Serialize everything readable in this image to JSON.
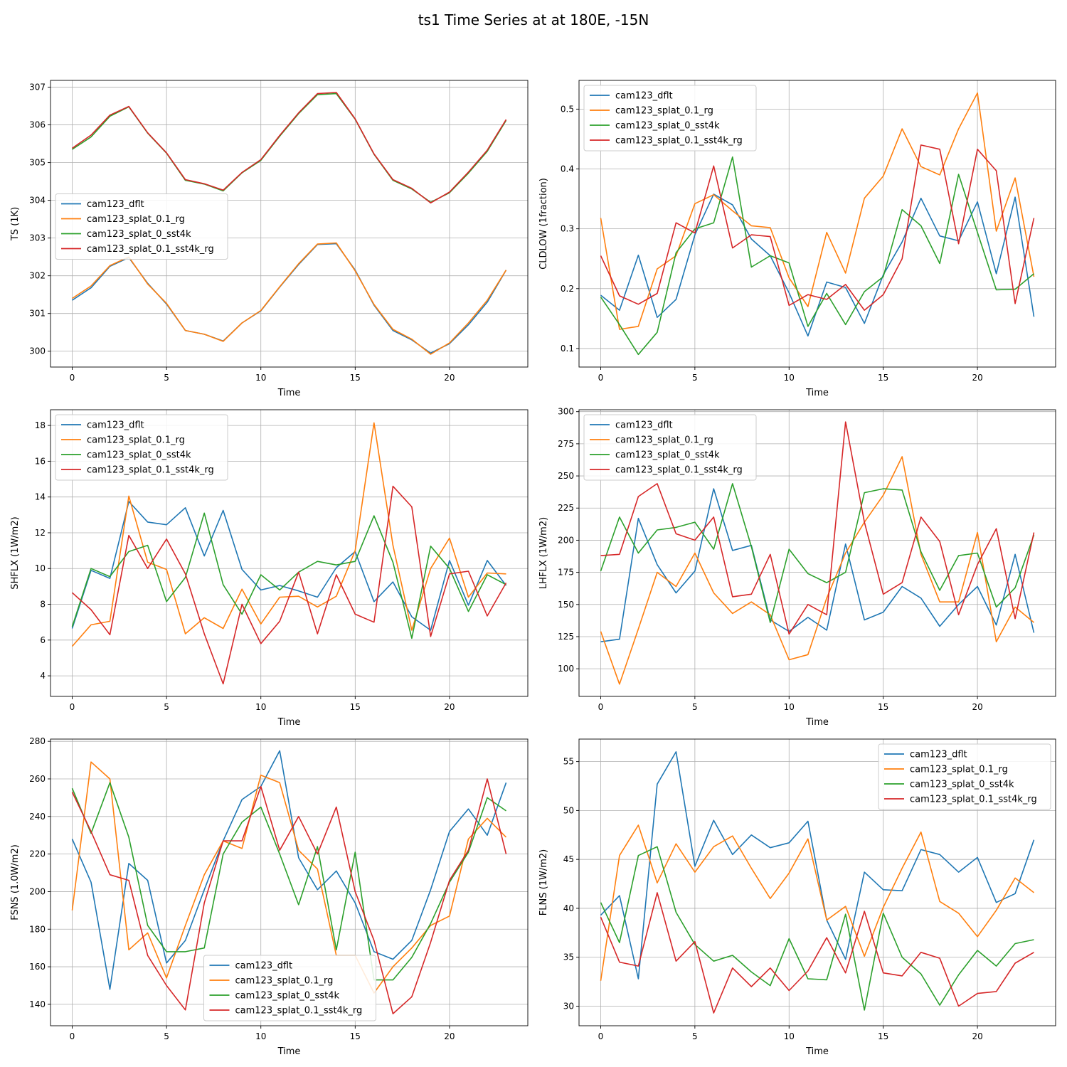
{
  "figure": {
    "title": "ts1 Time Series at at 180E, -15N",
    "series_names": [
      "cam123_dflt",
      "cam123_splat_0.1_rg",
      "cam123_splat_0_sst4k",
      "cam123_splat_0.1_sst4k_rg"
    ],
    "series_colors": [
      "#1f77b4",
      "#ff7f0e",
      "#2ca02c",
      "#d62728"
    ]
  },
  "chart_data": [
    {
      "type": "line",
      "id": "ts",
      "xlabel": "Time",
      "ylabel": "TS (1K)",
      "xlim": [
        -1.15,
        24.15
      ],
      "ylim": [
        299.58,
        307.18
      ],
      "xticks": [
        0,
        5,
        10,
        15,
        20
      ],
      "yticks": [
        300,
        301,
        302,
        303,
        304,
        305,
        306,
        307
      ],
      "legend": "center-left",
      "grid": true,
      "x": [
        0,
        1,
        2,
        3,
        4,
        5,
        6,
        7,
        8,
        9,
        10,
        11,
        12,
        13,
        14,
        15,
        16,
        17,
        18,
        19,
        20,
        21,
        22,
        23
      ],
      "series": [
        {
          "name": "cam123_dflt",
          "values": [
            301.35,
            301.68,
            302.25,
            302.48,
            301.8,
            301.25,
            300.55,
            300.45,
            300.27,
            300.75,
            301.07,
            301.7,
            302.3,
            302.83,
            302.85,
            302.15,
            301.22,
            300.55,
            300.3,
            299.95,
            300.2,
            300.7,
            301.3,
            302.15
          ]
        },
        {
          "name": "cam123_splat_0.1_rg",
          "values": [
            301.4,
            301.73,
            302.27,
            302.5,
            301.78,
            301.27,
            300.55,
            300.45,
            300.26,
            300.75,
            301.08,
            301.71,
            302.32,
            302.84,
            302.87,
            302.13,
            301.24,
            300.58,
            300.32,
            299.92,
            300.22,
            300.75,
            301.35,
            302.15
          ]
        },
        {
          "name": "cam123_splat_0_sst4k",
          "values": [
            305.35,
            305.68,
            306.23,
            306.48,
            305.78,
            305.25,
            304.53,
            304.43,
            304.25,
            304.73,
            305.06,
            305.7,
            306.3,
            306.8,
            306.83,
            306.15,
            305.22,
            304.53,
            304.3,
            303.95,
            304.2,
            304.72,
            305.3,
            306.12
          ]
        },
        {
          "name": "cam123_splat_0.1_sst4k_rg",
          "values": [
            305.38,
            305.73,
            306.26,
            306.49,
            305.79,
            305.26,
            304.55,
            304.44,
            304.27,
            304.74,
            305.08,
            305.72,
            306.32,
            306.83,
            306.86,
            306.16,
            305.23,
            304.55,
            304.32,
            303.93,
            304.22,
            304.75,
            305.33,
            306.14
          ]
        }
      ]
    },
    {
      "type": "line",
      "id": "cldlow",
      "xlabel": "Time",
      "ylabel": "CLDLOW (1fraction)",
      "xlim": [
        -1.15,
        24.15
      ],
      "ylim": [
        0.069,
        0.548
      ],
      "xticks": [
        0,
        5,
        10,
        15,
        20
      ],
      "yticks": [
        0.1,
        0.2,
        0.3,
        0.4,
        0.5
      ],
      "legend": "upper-left",
      "grid": true,
      "x": [
        0,
        1,
        2,
        3,
        4,
        5,
        6,
        7,
        8,
        9,
        10,
        11,
        12,
        13,
        14,
        15,
        16,
        17,
        18,
        19,
        20,
        21,
        22,
        23
      ],
      "series": [
        {
          "name": "cam123_dflt",
          "values": [
            0.189,
            0.164,
            0.256,
            0.152,
            0.182,
            0.29,
            0.358,
            0.34,
            0.283,
            0.255,
            0.193,
            0.121,
            0.211,
            0.202,
            0.142,
            0.223,
            0.278,
            0.351,
            0.288,
            0.28,
            0.345,
            0.225,
            0.353,
            0.153
          ]
        },
        {
          "name": "cam123_splat_0.1_rg",
          "values": [
            0.318,
            0.132,
            0.137,
            0.233,
            0.255,
            0.342,
            0.357,
            0.33,
            0.305,
            0.302,
            0.218,
            0.17,
            0.294,
            0.226,
            0.351,
            0.388,
            0.467,
            0.404,
            0.39,
            0.467,
            0.527,
            0.296,
            0.385,
            0.22
          ]
        },
        {
          "name": "cam123_splat_0_sst4k",
          "values": [
            0.186,
            0.14,
            0.09,
            0.127,
            0.26,
            0.3,
            0.31,
            0.42,
            0.236,
            0.255,
            0.243,
            0.137,
            0.192,
            0.14,
            0.195,
            0.22,
            0.332,
            0.305,
            0.242,
            0.391,
            0.294,
            0.198,
            0.199,
            0.225
          ]
        },
        {
          "name": "cam123_splat_0.1_sst4k_rg",
          "values": [
            0.255,
            0.188,
            0.174,
            0.192,
            0.31,
            0.293,
            0.405,
            0.268,
            0.29,
            0.287,
            0.172,
            0.19,
            0.182,
            0.207,
            0.164,
            0.19,
            0.25,
            0.44,
            0.433,
            0.275,
            0.433,
            0.397,
            0.175,
            0.318
          ]
        }
      ]
    },
    {
      "type": "line",
      "id": "shflx",
      "xlabel": "Time",
      "ylabel": "SHFLX (1W/m2)",
      "xlim": [
        -1.15,
        24.15
      ],
      "ylim": [
        2.85,
        18.88
      ],
      "xticks": [
        0,
        5,
        10,
        15,
        20
      ],
      "yticks": [
        4,
        6,
        8,
        10,
        12,
        14,
        16,
        18
      ],
      "legend": "upper-left",
      "grid": true,
      "x": [
        0,
        1,
        2,
        3,
        4,
        5,
        6,
        7,
        8,
        9,
        10,
        11,
        12,
        13,
        14,
        15,
        16,
        17,
        18,
        19,
        20,
        21,
        22,
        23
      ],
      "series": [
        {
          "name": "cam123_dflt",
          "values": [
            6.65,
            9.9,
            9.45,
            13.75,
            12.6,
            12.45,
            13.4,
            10.7,
            13.25,
            9.95,
            8.8,
            9.05,
            8.75,
            8.4,
            10.05,
            10.95,
            8.15,
            9.25,
            7.3,
            6.55,
            10.45,
            7.95,
            10.45,
            9.05
          ]
        },
        {
          "name": "cam123_splat_0.1_rg",
          "values": [
            5.65,
            6.85,
            7.05,
            14.05,
            10.35,
            9.95,
            6.35,
            7.25,
            6.65,
            8.85,
            6.9,
            8.4,
            8.45,
            7.85,
            8.45,
            11.0,
            18.15,
            11.3,
            6.55,
            10.0,
            11.7,
            8.4,
            9.75,
            9.7
          ]
        },
        {
          "name": "cam123_splat_0_sst4k",
          "values": [
            6.75,
            10.0,
            9.55,
            10.95,
            11.3,
            8.15,
            9.5,
            13.1,
            9.1,
            7.45,
            9.65,
            8.8,
            9.8,
            10.4,
            10.2,
            10.4,
            12.95,
            10.35,
            6.1,
            11.25,
            10.0,
            7.6,
            9.65,
            9.1
          ]
        },
        {
          "name": "cam123_splat_0.1_sst4k_rg",
          "values": [
            8.65,
            7.7,
            6.3,
            11.85,
            10.0,
            11.65,
            9.7,
            6.35,
            3.55,
            8.0,
            5.8,
            7.05,
            9.8,
            6.35,
            9.65,
            7.45,
            7.0,
            14.6,
            13.45,
            6.2,
            9.7,
            9.85,
            7.35,
            9.2
          ]
        }
      ]
    },
    {
      "type": "line",
      "id": "lhflx",
      "xlabel": "Time",
      "ylabel": "LHFLX (1W/m2)",
      "xlim": [
        -1.15,
        24.15
      ],
      "ylim": [
        78.5,
        301.5
      ],
      "xticks": [
        0,
        5,
        10,
        15,
        20
      ],
      "yticks": [
        100,
        125,
        150,
        175,
        200,
        225,
        250,
        275,
        300
      ],
      "legend": "upper-left",
      "grid": true,
      "x": [
        0,
        1,
        2,
        3,
        4,
        5,
        6,
        7,
        8,
        9,
        10,
        11,
        12,
        13,
        14,
        15,
        16,
        17,
        18,
        19,
        20,
        21,
        22,
        23
      ],
      "series": [
        {
          "name": "cam123_dflt",
          "values": [
            121,
            123,
            217,
            181,
            159,
            176,
            240,
            192,
            196,
            138,
            129,
            140,
            130,
            197,
            138,
            144,
            164,
            155,
            133,
            150,
            164,
            134,
            189,
            128
          ]
        },
        {
          "name": "cam123_splat_0.1_rg",
          "values": [
            129,
            88,
            131,
            175,
            164,
            190,
            159,
            143,
            152,
            142,
            107,
            111,
            155,
            190,
            214,
            235,
            265,
            189,
            152,
            152,
            206,
            121,
            148,
            136
          ]
        },
        {
          "name": "cam123_splat_0_sst4k",
          "values": [
            176,
            218,
            190,
            208,
            210,
            214,
            193,
            244,
            195,
            136,
            193,
            174,
            167,
            175,
            237,
            240,
            239,
            191,
            161,
            188,
            190,
            148,
            163,
            204
          ]
        },
        {
          "name": "cam123_splat_0.1_sst4k_rg",
          "values": [
            188,
            189,
            234,
            244,
            205,
            200,
            218,
            156,
            158,
            189,
            127,
            150,
            142,
            292,
            214,
            158,
            167,
            218,
            199,
            142,
            181,
            209,
            139,
            206
          ]
        }
      ]
    },
    {
      "type": "line",
      "id": "fsns",
      "xlabel": "Time",
      "ylabel": "FSNS (1.0W/m2)",
      "xlim": [
        -1.15,
        24.15
      ],
      "ylim": [
        128.6,
        281.2
      ],
      "xticks": [
        0,
        5,
        10,
        15,
        20
      ],
      "yticks": [
        140,
        160,
        180,
        200,
        220,
        240,
        260,
        280
      ],
      "legend": "lower-center",
      "grid": true,
      "x": [
        0,
        1,
        2,
        3,
        4,
        5,
        6,
        7,
        8,
        9,
        10,
        11,
        12,
        13,
        14,
        15,
        16,
        17,
        18,
        19,
        20,
        21,
        22,
        23
      ],
      "series": [
        {
          "name": "cam123_dflt",
          "values": [
            228,
            205,
            148,
            215,
            206,
            162,
            174,
            201,
            227,
            249,
            256,
            275,
            218,
            201,
            211,
            194,
            168,
            164,
            174,
            201,
            232,
            244,
            230,
            258
          ]
        },
        {
          "name": "cam123_splat_0.1_rg",
          "values": [
            190,
            269,
            260,
            169,
            178,
            154,
            182,
            209,
            227,
            223,
            262,
            258,
            222,
            212,
            166,
            166,
            146,
            160,
            170,
            182,
            187,
            228,
            239,
            229
          ]
        },
        {
          "name": "cam123_splat_0_sst4k",
          "values": [
            255,
            231,
            258,
            229,
            182,
            168,
            168,
            170,
            220,
            237,
            245,
            220,
            193,
            224,
            169,
            221,
            153,
            153,
            165,
            183,
            205,
            221,
            250,
            243
          ]
        },
        {
          "name": "cam123_splat_0.1_sst4k_rg",
          "values": [
            253,
            232,
            209,
            206,
            166,
            150,
            137,
            194,
            227,
            227,
            256,
            222,
            240,
            220,
            245,
            200,
            174,
            135,
            144,
            173,
            206,
            222,
            260,
            220
          ]
        }
      ]
    },
    {
      "type": "line",
      "id": "flns",
      "xlabel": "Time",
      "ylabel": "FLNS (1W/m2)",
      "xlim": [
        -1.15,
        24.15
      ],
      "ylim": [
        28.0,
        57.3
      ],
      "xticks": [
        0,
        5,
        10,
        15,
        20
      ],
      "yticks": [
        30,
        35,
        40,
        45,
        50,
        55
      ],
      "legend": "upper-right",
      "grid": true,
      "x": [
        0,
        1,
        2,
        3,
        4,
        5,
        6,
        7,
        8,
        9,
        10,
        11,
        12,
        13,
        14,
        15,
        16,
        17,
        18,
        19,
        20,
        21,
        22,
        23
      ],
      "series": [
        {
          "name": "cam123_dflt",
          "values": [
            39.3,
            41.3,
            32.8,
            52.7,
            56.0,
            44.3,
            49.0,
            45.5,
            47.5,
            46.2,
            46.7,
            48.9,
            38.8,
            34.8,
            43.7,
            41.9,
            41.8,
            46.0,
            45.5,
            43.7,
            45.2,
            40.6,
            41.5,
            47.0
          ]
        },
        {
          "name": "cam123_splat_0.1_rg",
          "values": [
            32.6,
            45.4,
            48.5,
            42.6,
            46.6,
            43.7,
            46.3,
            47.4,
            44.1,
            41.0,
            43.6,
            47.1,
            38.8,
            40.2,
            35.1,
            40.1,
            44.1,
            47.8,
            40.7,
            39.5,
            37.1,
            39.8,
            43.1,
            41.6
          ]
        },
        {
          "name": "cam123_splat_0_sst4k",
          "values": [
            40.6,
            36.5,
            45.4,
            46.3,
            39.6,
            36.3,
            34.6,
            35.2,
            33.5,
            32.1,
            36.9,
            32.8,
            32.7,
            39.4,
            29.6,
            39.5,
            35.0,
            33.3,
            30.1,
            33.2,
            35.7,
            34.1,
            36.4,
            36.8
          ]
        },
        {
          "name": "cam123_splat_0.1_sst4k_rg",
          "values": [
            39.1,
            34.5,
            34.1,
            41.6,
            34.6,
            36.6,
            29.3,
            33.9,
            32.0,
            33.9,
            31.6,
            33.6,
            37.0,
            33.4,
            39.7,
            33.4,
            33.1,
            35.5,
            34.9,
            30.0,
            31.3,
            31.5,
            34.4,
            35.5
          ]
        }
      ]
    }
  ]
}
